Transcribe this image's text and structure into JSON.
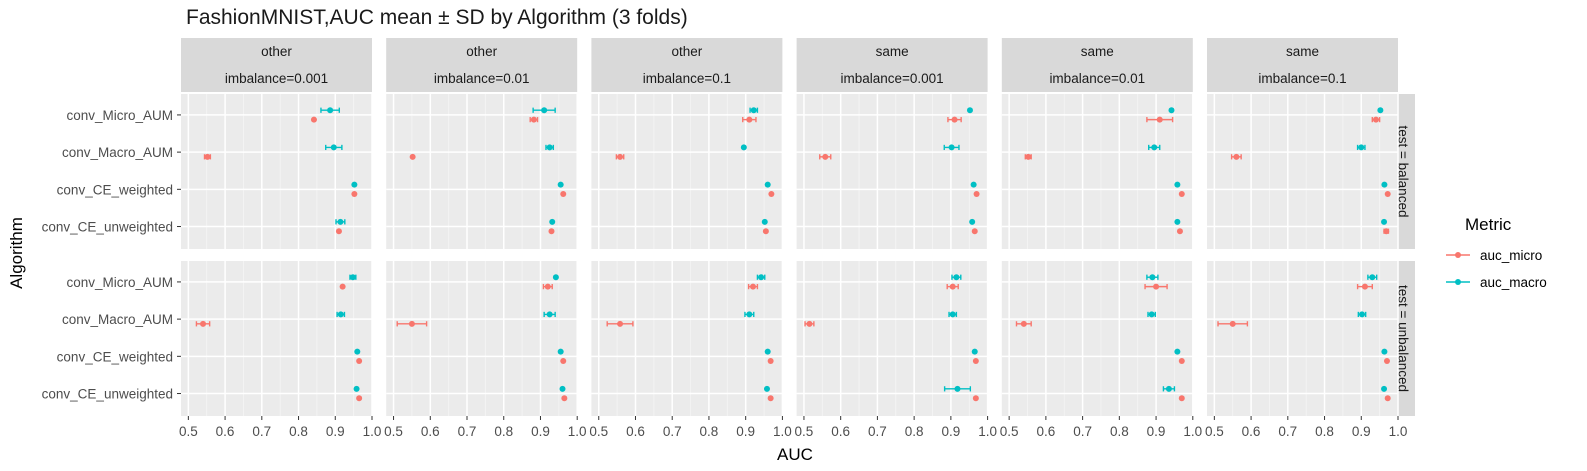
{
  "chart_data": {
    "type": "scatter",
    "title": "FashionMNIST,AUC mean ± SD by Algorithm (3 folds)",
    "xlabel": "AUC",
    "ylabel": "Algorithm",
    "xlim": [
      0.48,
      1.0
    ],
    "xticks": [
      "0.5",
      "0.6",
      "0.7",
      "0.8",
      "0.9",
      "1.0"
    ],
    "algorithms": [
      "conv_Micro_AUM",
      "conv_Macro_AUM",
      "conv_CE_weighted",
      "conv_CE_unweighted"
    ],
    "legend": {
      "title": "Metric",
      "position": "right",
      "entries": [
        {
          "name": "auc_micro",
          "color": "#F8766D"
        },
        {
          "name": "auc_macro",
          "color": "#00BFC4"
        }
      ]
    },
    "col_facets": [
      {
        "top": "other",
        "bottom": "imbalance=0.001"
      },
      {
        "top": "other",
        "bottom": "imbalance=0.01"
      },
      {
        "top": "other",
        "bottom": "imbalance=0.1"
      },
      {
        "top": "same",
        "bottom": "imbalance=0.001"
      },
      {
        "top": "same",
        "bottom": "imbalance=0.01"
      },
      {
        "top": "same",
        "bottom": "imbalance=0.1"
      }
    ],
    "row_facets": [
      "test = balanced",
      "test = unbalanced"
    ],
    "panels": [
      [
        {
          "micro": [
            [
              0.842,
              0
            ],
            [
              0.552,
              0.008
            ],
            [
              0.952,
              0
            ],
            [
              0.91,
              0
            ]
          ],
          "macro": [
            [
              0.886,
              0.025
            ],
            [
              0.896,
              0.022
            ],
            [
              0.952,
              0
            ],
            [
              0.914,
              0.012
            ]
          ]
        },
        {
          "micro": [
            [
              0.882,
              0.01
            ],
            [
              0.552,
              0
            ],
            [
              0.962,
              0
            ],
            [
              0.93,
              0
            ]
          ],
          "macro": [
            [
              0.91,
              0.03
            ],
            [
              0.925,
              0.01
            ],
            [
              0.955,
              0
            ],
            [
              0.932,
              0
            ]
          ]
        },
        {
          "micro": [
            [
              0.91,
              0.018
            ],
            [
              0.558,
              0.01
            ],
            [
              0.97,
              0
            ],
            [
              0.955,
              0
            ]
          ],
          "macro": [
            [
              0.922,
              0.01
            ],
            [
              0.895,
              0
            ],
            [
              0.96,
              0
            ],
            [
              0.952,
              0
            ]
          ]
        },
        {
          "micro": [
            [
              0.91,
              0.018
            ],
            [
              0.558,
              0.015
            ],
            [
              0.97,
              0
            ],
            [
              0.965,
              0
            ]
          ],
          "macro": [
            [
              0.952,
              0
            ],
            [
              0.902,
              0.02
            ],
            [
              0.962,
              0
            ],
            [
              0.958,
              0
            ]
          ]
        },
        {
          "micro": [
            [
              0.91,
              0.035
            ],
            [
              0.552,
              0.008
            ],
            [
              0.97,
              0
            ],
            [
              0.965,
              0
            ]
          ],
          "macro": [
            [
              0.942,
              0
            ],
            [
              0.895,
              0.015
            ],
            [
              0.958,
              0
            ],
            [
              0.958,
              0
            ]
          ]
        },
        {
          "micro": [
            [
              0.94,
              0.01
            ],
            [
              0.56,
              0.013
            ],
            [
              0.972,
              0
            ],
            [
              0.968,
              0.006
            ]
          ],
          "macro": [
            [
              0.952,
              0
            ],
            [
              0.9,
              0.01
            ],
            [
              0.963,
              0
            ],
            [
              0.962,
              0
            ]
          ]
        }
      ],
      [
        {
          "micro": [
            [
              0.92,
              0
            ],
            [
              0.54,
              0.018
            ],
            [
              0.965,
              0
            ],
            [
              0.965,
              0
            ]
          ],
          "macro": [
            [
              0.948,
              0.008
            ],
            [
              0.915,
              0.01
            ],
            [
              0.96,
              0
            ],
            [
              0.958,
              0
            ]
          ]
        },
        {
          "micro": [
            [
              0.92,
              0.012
            ],
            [
              0.55,
              0.04
            ],
            [
              0.962,
              0
            ],
            [
              0.965,
              0
            ]
          ],
          "macro": [
            [
              0.942,
              0
            ],
            [
              0.925,
              0.015
            ],
            [
              0.955,
              0
            ],
            [
              0.96,
              0
            ]
          ]
        },
        {
          "micro": [
            [
              0.92,
              0.012
            ],
            [
              0.558,
              0.035
            ],
            [
              0.968,
              0
            ],
            [
              0.968,
              0
            ]
          ],
          "macro": [
            [
              0.942,
              0.01
            ],
            [
              0.91,
              0.012
            ],
            [
              0.96,
              0
            ],
            [
              0.958,
              0
            ]
          ]
        },
        {
          "micro": [
            [
              0.905,
              0.015
            ],
            [
              0.515,
              0.012
            ],
            [
              0.968,
              0
            ],
            [
              0.968,
              0
            ]
          ],
          "macro": [
            [
              0.915,
              0.012
            ],
            [
              0.905,
              0.01
            ],
            [
              0.965,
              0
            ],
            [
              0.918,
              0.035
            ]
          ]
        },
        {
          "micro": [
            [
              0.9,
              0.03
            ],
            [
              0.54,
              0.02
            ],
            [
              0.97,
              0
            ],
            [
              0.97,
              0
            ]
          ],
          "macro": [
            [
              0.89,
              0.015
            ],
            [
              0.888,
              0.01
            ],
            [
              0.958,
              0
            ],
            [
              0.935,
              0.015
            ]
          ]
        },
        {
          "micro": [
            [
              0.91,
              0.02
            ],
            [
              0.55,
              0.04
            ],
            [
              0.97,
              0
            ],
            [
              0.972,
              0
            ]
          ],
          "macro": [
            [
              0.93,
              0.012
            ],
            [
              0.902,
              0.01
            ],
            [
              0.963,
              0
            ],
            [
              0.962,
              0
            ]
          ]
        }
      ]
    ]
  }
}
